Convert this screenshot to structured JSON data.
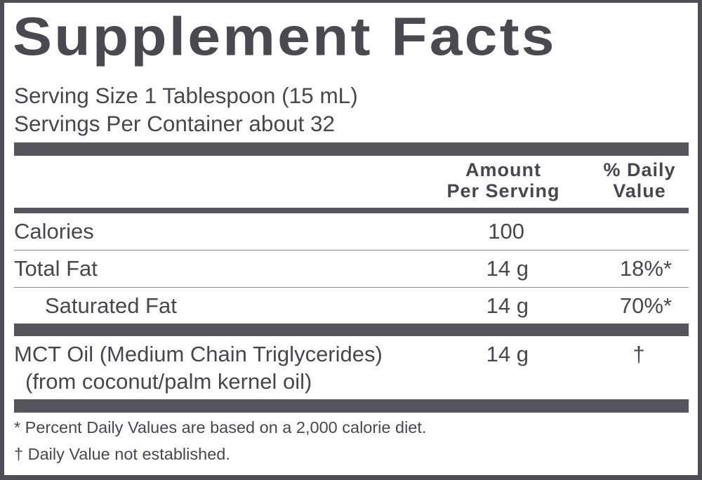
{
  "title": "Supplement Facts",
  "serving_size": "Serving Size 1 Tablespoon (15 mL)",
  "servings_per_container": "Servings Per Container about 32",
  "headers": {
    "amount_line1": "Amount",
    "amount_line2": "Per Serving",
    "dv_line1": "% Daily",
    "dv_line2": "Value"
  },
  "rows": [
    {
      "name": "Calories",
      "amount": "100",
      "dv": ""
    },
    {
      "name": "Total Fat",
      "amount": "14 g",
      "dv": "18%*"
    },
    {
      "name": "Saturated Fat",
      "amount": "14 g",
      "dv": "70%*"
    },
    {
      "name": "MCT Oil (Medium Chain Triglycerides)",
      "sub": "(from coconut/palm kernel oil)",
      "amount": "14 g",
      "dv": "†"
    }
  ],
  "footnotes": [
    "* Percent Daily Values are based on a 2,000 calorie diet.",
    "† Daily Value not established."
  ],
  "colors": {
    "ink": "#48474d",
    "bars": "#56555b",
    "border": "#4f4e54"
  }
}
